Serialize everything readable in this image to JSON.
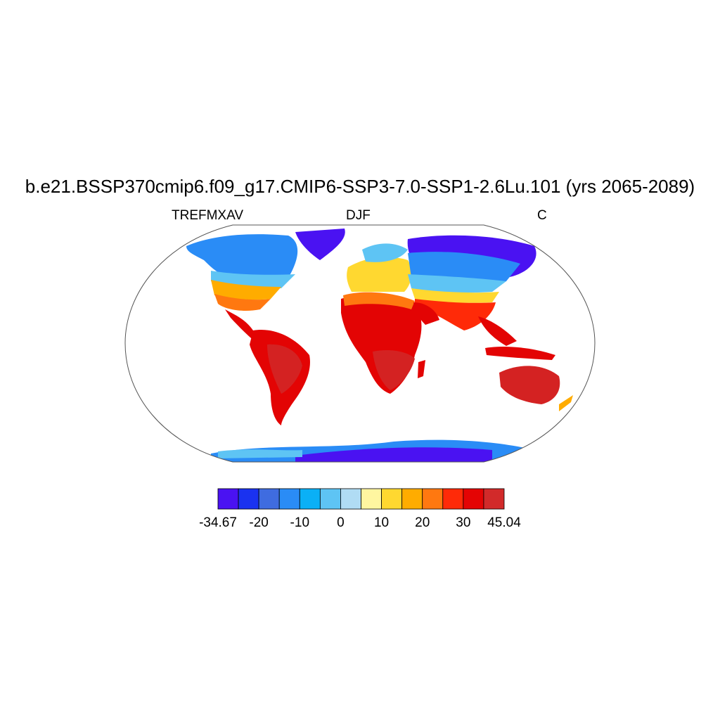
{
  "title": "b.e21.BSSP370cmip6.f09_g17.CMIP6-SSP3-7.0-SSP1-2.6Lu.101 (yrs 2065-2089)",
  "left_string": "TREFMXAV",
  "center_string": "DJF",
  "right_string": "C",
  "colorbar": {
    "colors": [
      "#4a12f2",
      "#1a32f0",
      "#3f6ce0",
      "#2a8cf6",
      "#0ab0f6",
      "#5ec4f4",
      "#b0dcf4",
      "#fff6a0",
      "#ffd830",
      "#ffac00",
      "#ff7810",
      "#ff2a08",
      "#e40404",
      "#d22a2a"
    ],
    "labels": [
      "-34.67",
      "-20",
      "-10",
      "0",
      "10",
      "20",
      "30",
      "45.04"
    ],
    "label_positions": [
      0,
      2,
      4,
      6,
      8,
      10,
      12,
      14
    ]
  },
  "map_colors": {
    "land_hot": "#d42222",
    "land_red": "#e30404",
    "land_orange": "#ff7810",
    "land_yellow": "#ffd830",
    "land_cool": "#5ec4f4",
    "land_cold": "#2a8cf6",
    "land_frigid": "#4a12f2",
    "land_pale": "#b0dcf4",
    "outline": "#333333"
  }
}
